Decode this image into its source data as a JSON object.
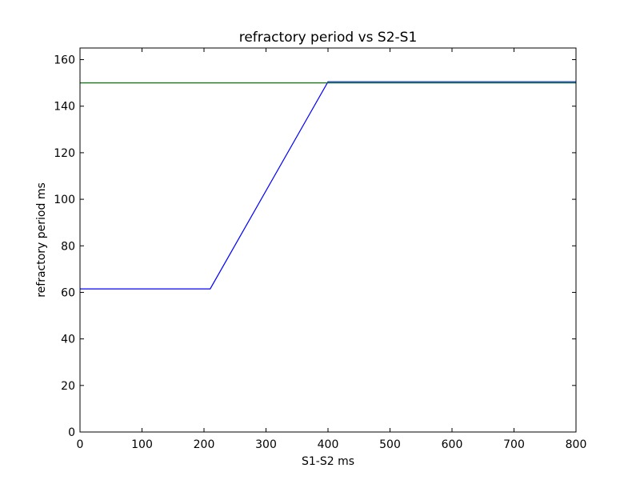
{
  "chart_data": {
    "type": "line",
    "title": "refractory period vs S2-S1",
    "xlabel": "S1-S2 ms",
    "ylabel": "refractory period ms",
    "xlim": [
      0,
      800
    ],
    "ylim": [
      0,
      165
    ],
    "xticks": [
      0,
      100,
      200,
      300,
      400,
      500,
      600,
      700,
      800
    ],
    "yticks": [
      0,
      20,
      40,
      60,
      80,
      100,
      120,
      140,
      160
    ],
    "grid": false,
    "series": [
      {
        "color": "#0000ff",
        "x": [
          0,
          210,
          400,
          800
        ],
        "y": [
          61.5,
          61.5,
          150.5,
          150.5
        ]
      },
      {
        "color": "#008000",
        "x": [
          0,
          800
        ],
        "y": [
          150,
          150
        ]
      }
    ]
  }
}
